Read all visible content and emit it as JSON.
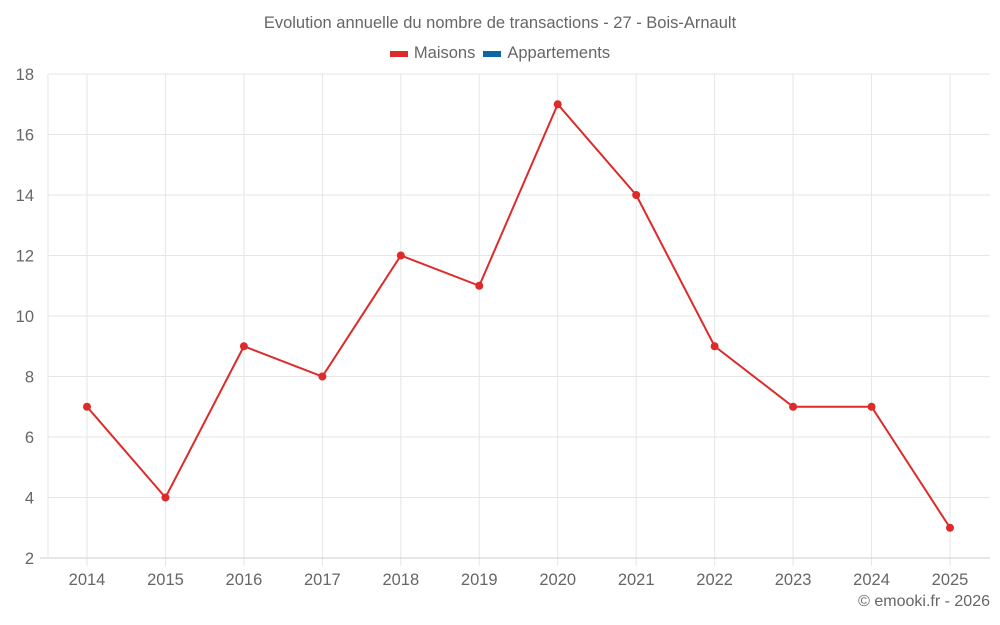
{
  "chart_data": {
    "type": "line",
    "title": "Evolution annuelle du nombre de transactions - 27 - Bois-Arnault",
    "xlabel": "",
    "ylabel": "",
    "categories": [
      "2014",
      "2015",
      "2016",
      "2017",
      "2018",
      "2019",
      "2020",
      "2021",
      "2022",
      "2023",
      "2024",
      "2025"
    ],
    "series": [
      {
        "name": "Maisons",
        "color": "#dd2a2a",
        "values": [
          7,
          4,
          9,
          8,
          12,
          11,
          17,
          14,
          9,
          7,
          7,
          3
        ]
      },
      {
        "name": "Appartements",
        "color": "#0a67a2",
        "values": []
      }
    ],
    "ylim": [
      2,
      18
    ],
    "yticks": [
      2,
      4,
      6,
      8,
      10,
      12,
      14,
      16,
      18
    ],
    "grid": true,
    "legend_position": "top"
  },
  "legend": {
    "items": [
      {
        "label": "Maisons",
        "color": "#dd2a2a"
      },
      {
        "label": "Appartements",
        "color": "#0a67a2"
      }
    ]
  },
  "credit": "© emooki.fr - 2026"
}
